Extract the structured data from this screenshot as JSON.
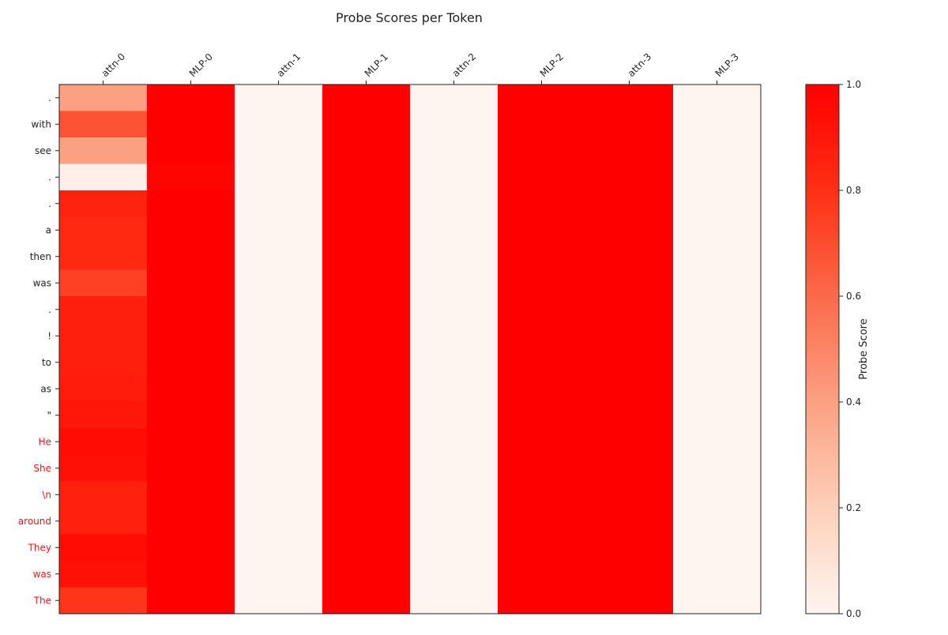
{
  "chart_data": {
    "type": "heatmap",
    "title": "Probe Scores per Token",
    "columns": [
      "attn-0",
      "MLP-0",
      "attn-1",
      "MLP-1",
      "attn-2",
      "MLP-2",
      "attn-3",
      "MLP-3"
    ],
    "rows": [
      {
        "token": ".",
        "highlight": false
      },
      {
        "token": "with",
        "highlight": false
      },
      {
        "token": "see",
        "highlight": false
      },
      {
        "token": ".",
        "highlight": false
      },
      {
        "token": ".",
        "highlight": false
      },
      {
        "token": "a",
        "highlight": false
      },
      {
        "token": "then",
        "highlight": false
      },
      {
        "token": "was",
        "highlight": false
      },
      {
        "token": ".",
        "highlight": false
      },
      {
        "token": "!",
        "highlight": false
      },
      {
        "token": "to",
        "highlight": false
      },
      {
        "token": "as",
        "highlight": false
      },
      {
        "token": "\"",
        "highlight": false
      },
      {
        "token": "He",
        "highlight": true
      },
      {
        "token": "She",
        "highlight": true
      },
      {
        "token": "\\n",
        "highlight": true
      },
      {
        "token": "around",
        "highlight": true
      },
      {
        "token": "They",
        "highlight": true
      },
      {
        "token": "was",
        "highlight": true
      },
      {
        "token": "The",
        "highlight": true
      }
    ],
    "values": [
      [
        0.4,
        1.0,
        0.0,
        1.0,
        0.0,
        1.0,
        1.0,
        0.0
      ],
      [
        0.68,
        1.0,
        0.0,
        1.0,
        0.0,
        1.0,
        1.0,
        0.0
      ],
      [
        0.4,
        1.0,
        0.0,
        1.0,
        0.0,
        1.0,
        1.0,
        0.0
      ],
      [
        0.03,
        0.98,
        0.0,
        1.0,
        0.0,
        1.0,
        1.0,
        0.0
      ],
      [
        0.85,
        1.0,
        0.0,
        1.0,
        0.0,
        1.0,
        1.0,
        0.0
      ],
      [
        0.83,
        1.0,
        0.0,
        1.0,
        0.0,
        1.0,
        1.0,
        0.0
      ],
      [
        0.83,
        1.0,
        0.0,
        1.0,
        0.0,
        1.0,
        1.0,
        0.0
      ],
      [
        0.74,
        1.0,
        0.0,
        1.0,
        0.0,
        1.0,
        1.0,
        0.0
      ],
      [
        0.87,
        1.0,
        0.0,
        1.0,
        0.0,
        1.0,
        1.0,
        0.0
      ],
      [
        0.87,
        1.0,
        0.0,
        1.0,
        0.0,
        1.0,
        1.0,
        0.0
      ],
      [
        0.87,
        1.0,
        0.0,
        1.0,
        0.0,
        1.0,
        1.0,
        0.0
      ],
      [
        0.88,
        1.0,
        0.0,
        1.0,
        0.0,
        1.0,
        1.0,
        0.0
      ],
      [
        0.9,
        1.0,
        0.0,
        1.0,
        0.0,
        1.0,
        1.0,
        0.0
      ],
      [
        0.95,
        1.0,
        0.0,
        1.0,
        0.0,
        1.0,
        1.0,
        0.0
      ],
      [
        0.93,
        1.0,
        0.0,
        1.0,
        0.0,
        1.0,
        1.0,
        0.0
      ],
      [
        0.86,
        1.0,
        0.0,
        1.0,
        0.0,
        1.0,
        1.0,
        0.0
      ],
      [
        0.86,
        1.0,
        0.0,
        1.0,
        0.0,
        1.0,
        1.0,
        0.0
      ],
      [
        0.95,
        1.0,
        0.0,
        1.0,
        0.0,
        1.0,
        1.0,
        0.0
      ],
      [
        0.93,
        1.0,
        0.0,
        1.0,
        0.0,
        1.0,
        1.0,
        0.0
      ],
      [
        0.78,
        1.0,
        0.0,
        1.0,
        0.0,
        1.0,
        1.0,
        0.0
      ]
    ],
    "colorbar": {
      "label": "Probe Score",
      "range": [
        0.0,
        1.0
      ],
      "ticks": [
        "0.0",
        "0.2",
        "0.4",
        "0.6",
        "0.8",
        "1.0"
      ],
      "colormap": [
        "#fff5f0",
        "#fdd0b8",
        "#fca082",
        "#fb6a4a",
        "#ff2f14",
        "#ff0000"
      ]
    },
    "colors": {
      "highlight_token": "#e41a1c",
      "token": "#222222"
    }
  }
}
